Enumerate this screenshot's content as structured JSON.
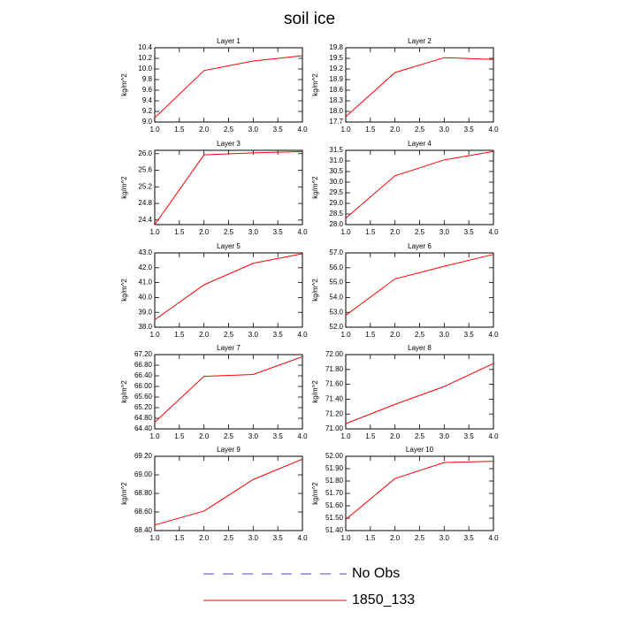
{
  "title": "soil ice",
  "legend": [
    {
      "name": "No Obs",
      "color": "#4a4ab0",
      "dash": true
    },
    {
      "name": "1850_133",
      "color": "#ff0000",
      "dash": false
    }
  ],
  "chart_data": [
    {
      "type": "line",
      "title": "Layer 1",
      "ylabel": "kg/m^2",
      "x": [
        1,
        2,
        3,
        4
      ],
      "xlim": [
        1,
        4
      ],
      "xticks": [
        {
          "value": 1,
          "label": "1.0"
        },
        1.5,
        {
          "value": 2,
          "label": "2.0"
        },
        2.5,
        {
          "value": 3,
          "label": "3.0"
        },
        3.5,
        {
          "value": 4,
          "label": "4.0"
        }
      ],
      "ylim": [
        9.0,
        10.4
      ],
      "yticks": [
        {
          "value": 9,
          "label": "9.0"
        },
        9.2,
        9.4,
        9.6,
        9.8,
        {
          "value": 10,
          "label": "10.0"
        },
        10.2,
        10.4
      ],
      "series": [
        {
          "color": "#ff0000",
          "values": [
            9.08,
            9.97,
            10.15,
            10.25
          ]
        }
      ]
    },
    {
      "type": "line",
      "title": "Layer 2",
      "ylabel": "kg/m^2",
      "x": [
        1,
        2,
        3,
        4
      ],
      "xlim": [
        1,
        4
      ],
      "xticks": [
        {
          "value": 1,
          "label": "1.0"
        },
        1.5,
        {
          "value": 2,
          "label": "2.0"
        },
        2.5,
        {
          "value": 3,
          "label": "3.0"
        },
        3.5,
        {
          "value": 4,
          "label": "4.0"
        }
      ],
      "ylim": [
        17.7,
        19.8
      ],
      "yticks": [
        17.7,
        {
          "value": 18,
          "label": "18.0"
        },
        18.3,
        18.6,
        18.9,
        19.2,
        19.5,
        19.8
      ],
      "series": [
        {
          "color": "#ff0000",
          "values": [
            17.85,
            19.1,
            19.52,
            19.47
          ]
        }
      ]
    },
    {
      "type": "line",
      "title": "Layer 3",
      "ylabel": "kg/m^2",
      "x": [
        1,
        2,
        3,
        4
      ],
      "xlim": [
        1,
        4
      ],
      "xticks": [
        {
          "value": 1,
          "label": "1.0"
        },
        1.5,
        {
          "value": 2,
          "label": "2.0"
        },
        2.5,
        {
          "value": 3,
          "label": "3.0"
        },
        3.5,
        {
          "value": 4,
          "label": "4.0"
        }
      ],
      "ylim": [
        24.29,
        26.08
      ],
      "yticks": [
        24.4,
        24.8,
        25.2,
        25.6,
        {
          "value": 26,
          "label": "26.0"
        }
      ],
      "series": [
        {
          "color": "#ff0000",
          "values": [
            24.29,
            25.97,
            26.02,
            26.05
          ]
        }
      ]
    },
    {
      "type": "line",
      "title": "Layer 4",
      "ylabel": "kg/m^2",
      "x": [
        1,
        2,
        3,
        4
      ],
      "xlim": [
        1,
        4
      ],
      "xticks": [
        {
          "value": 1,
          "label": "1.0"
        },
        1.5,
        {
          "value": 2,
          "label": "2.0"
        },
        2.5,
        {
          "value": 3,
          "label": "3.0"
        },
        3.5,
        {
          "value": 4,
          "label": "4.0"
        }
      ],
      "ylim": [
        28.0,
        31.5
      ],
      "yticks": [
        {
          "value": 28,
          "label": "28.0"
        },
        28.5,
        {
          "value": 29,
          "label": "29.0"
        },
        29.5,
        {
          "value": 30,
          "label": "30.0"
        },
        30.5,
        {
          "value": 31,
          "label": "31.0"
        },
        31.5
      ],
      "series": [
        {
          "color": "#ff0000",
          "values": [
            28.3,
            30.3,
            31.05,
            31.45
          ]
        }
      ]
    },
    {
      "type": "line",
      "title": "Layer 5",
      "ylabel": "kg/m^2",
      "x": [
        1,
        2,
        3,
        4
      ],
      "xlim": [
        1,
        4
      ],
      "xticks": [
        {
          "value": 1,
          "label": "1.0"
        },
        1.5,
        {
          "value": 2,
          "label": "2.0"
        },
        2.5,
        {
          "value": 3,
          "label": "3.0"
        },
        3.5,
        {
          "value": 4,
          "label": "4.0"
        }
      ],
      "ylim": [
        38.0,
        43.0
      ],
      "yticks": [
        {
          "value": 38,
          "label": "38.0"
        },
        {
          "value": 39,
          "label": "39.0"
        },
        {
          "value": 40,
          "label": "40.0"
        },
        {
          "value": 41,
          "label": "41.0"
        },
        {
          "value": 42,
          "label": "42.0"
        },
        {
          "value": 43,
          "label": "43.0"
        }
      ],
      "series": [
        {
          "color": "#ff0000",
          "values": [
            38.5,
            40.85,
            42.3,
            42.95
          ]
        }
      ]
    },
    {
      "type": "line",
      "title": "Layer 6",
      "ylabel": "kg/m^2",
      "x": [
        1,
        2,
        3,
        4
      ],
      "xlim": [
        1,
        4
      ],
      "xticks": [
        {
          "value": 1,
          "label": "1.0"
        },
        1.5,
        {
          "value": 2,
          "label": "2.0"
        },
        2.5,
        {
          "value": 3,
          "label": "3.0"
        },
        3.5,
        {
          "value": 4,
          "label": "4.0"
        }
      ],
      "ylim": [
        52.0,
        57.0
      ],
      "yticks": [
        {
          "value": 52,
          "label": "52.0"
        },
        {
          "value": 53,
          "label": "53.0"
        },
        {
          "value": 54,
          "label": "54.0"
        },
        {
          "value": 55,
          "label": "55.0"
        },
        {
          "value": 56,
          "label": "56.0"
        },
        {
          "value": 57,
          "label": "57.0"
        }
      ],
      "series": [
        {
          "color": "#ff0000",
          "values": [
            52.8,
            55.25,
            56.1,
            56.9
          ]
        }
      ]
    },
    {
      "type": "line",
      "title": "Layer 7",
      "ylabel": "kg/m^2",
      "x": [
        1,
        2,
        3,
        4
      ],
      "xlim": [
        1,
        4
      ],
      "xticks": [
        {
          "value": 1,
          "label": "1.0"
        },
        1.5,
        {
          "value": 2,
          "label": "2.0"
        },
        2.5,
        {
          "value": 3,
          "label": "3.0"
        },
        3.5,
        {
          "value": 4,
          "label": "4.0"
        }
      ],
      "ylim": [
        64.4,
        67.2
      ],
      "yticks": [
        {
          "value": 64.4,
          "label": "64.40"
        },
        {
          "value": 64.8,
          "label": "64.80"
        },
        {
          "value": 65.2,
          "label": "65.20"
        },
        {
          "value": 65.6,
          "label": "65.60"
        },
        {
          "value": 66,
          "label": "66.00"
        },
        {
          "value": 66.4,
          "label": "66.40"
        },
        {
          "value": 66.8,
          "label": "66.80"
        },
        {
          "value": 67.2,
          "label": "67.20"
        }
      ],
      "series": [
        {
          "color": "#ff0000",
          "values": [
            64.65,
            66.38,
            66.45,
            67.12
          ]
        }
      ]
    },
    {
      "type": "line",
      "title": "Layer 8",
      "ylabel": "kg/m^2",
      "x": [
        1,
        2,
        3,
        4
      ],
      "xlim": [
        1,
        4
      ],
      "xticks": [
        {
          "value": 1,
          "label": "1.0"
        },
        1.5,
        {
          "value": 2,
          "label": "2.0"
        },
        2.5,
        {
          "value": 3,
          "label": "3.0"
        },
        3.5,
        {
          "value": 4,
          "label": "4.0"
        }
      ],
      "ylim": [
        71.0,
        72.0
      ],
      "yticks": [
        {
          "value": 71,
          "label": "71.00"
        },
        {
          "value": 71.2,
          "label": "71.20"
        },
        {
          "value": 71.4,
          "label": "71.40"
        },
        {
          "value": 71.6,
          "label": "71.60"
        },
        {
          "value": 71.8,
          "label": "71.80"
        },
        {
          "value": 72,
          "label": "72.00"
        }
      ],
      "series": [
        {
          "color": "#ff0000",
          "values": [
            71.07,
            71.33,
            71.57,
            71.88
          ]
        }
      ]
    },
    {
      "type": "line",
      "title": "Layer 9",
      "ylabel": "kg/m^2",
      "x": [
        1,
        2,
        3,
        4
      ],
      "xlim": [
        1,
        4
      ],
      "xticks": [
        {
          "value": 1,
          "label": "1.0"
        },
        1.5,
        {
          "value": 2,
          "label": "2.0"
        },
        2.5,
        {
          "value": 3,
          "label": "3.0"
        },
        3.5,
        {
          "value": 4,
          "label": "4.0"
        }
      ],
      "ylim": [
        68.4,
        69.2
      ],
      "yticks": [
        {
          "value": 68.4,
          "label": "68.40"
        },
        {
          "value": 68.6,
          "label": "68.60"
        },
        {
          "value": 68.8,
          "label": "68.80"
        },
        {
          "value": 69,
          "label": "69.00"
        },
        {
          "value": 69.2,
          "label": "69.20"
        }
      ],
      "series": [
        {
          "color": "#ff0000",
          "values": [
            68.46,
            68.61,
            68.95,
            69.17
          ]
        }
      ]
    },
    {
      "type": "line",
      "title": "Layer 10",
      "ylabel": "kg/m^2",
      "x": [
        1,
        2,
        3,
        4
      ],
      "xlim": [
        1,
        4
      ],
      "xticks": [
        {
          "value": 1,
          "label": "1.0"
        },
        1.5,
        {
          "value": 2,
          "label": "2.0"
        },
        2.5,
        {
          "value": 3,
          "label": "3.0"
        },
        3.5,
        {
          "value": 4,
          "label": "4.0"
        }
      ],
      "ylim": [
        51.4,
        52.0
      ],
      "yticks": [
        {
          "value": 51.4,
          "label": "51.40"
        },
        {
          "value": 51.5,
          "label": "51.50"
        },
        {
          "value": 51.6,
          "label": "51.60"
        },
        {
          "value": 51.7,
          "label": "51.70"
        },
        {
          "value": 51.8,
          "label": "51.80"
        },
        {
          "value": 51.9,
          "label": "51.90"
        },
        {
          "value": 52,
          "label": "52.00"
        }
      ],
      "series": [
        {
          "color": "#ff0000",
          "values": [
            51.49,
            51.82,
            51.95,
            51.96
          ]
        }
      ]
    }
  ]
}
